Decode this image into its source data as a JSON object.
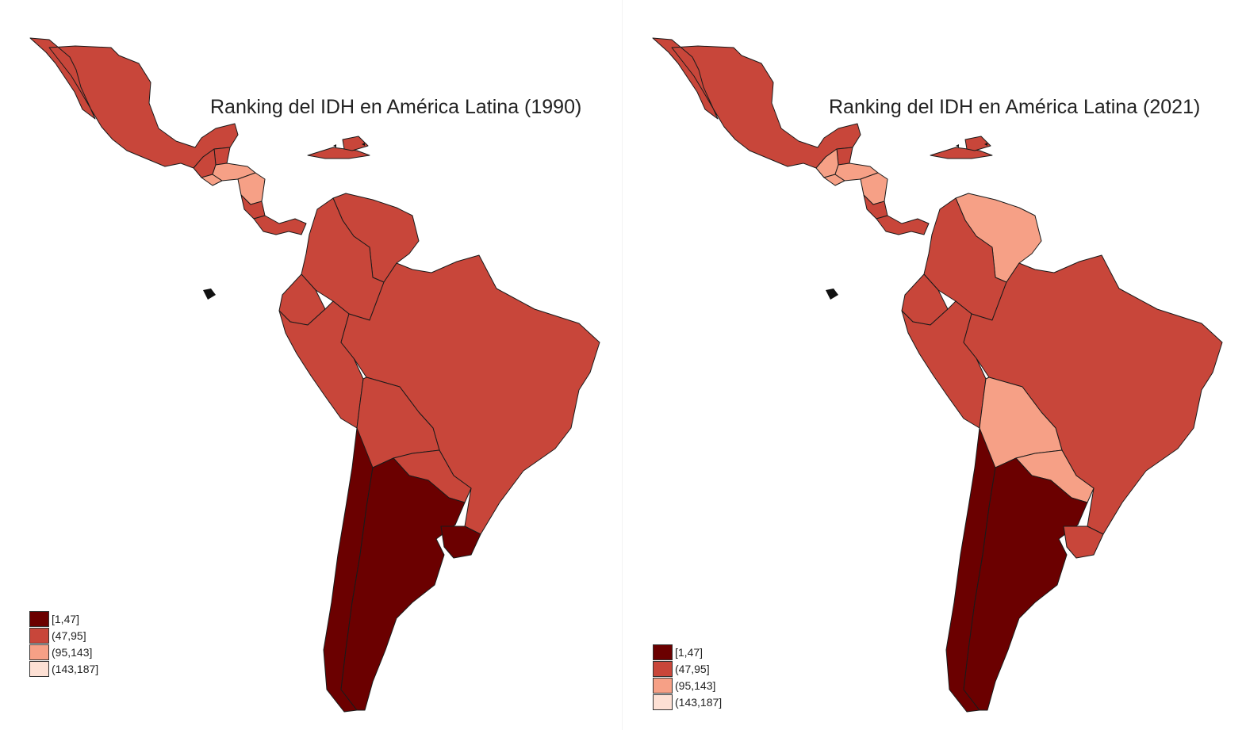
{
  "colors": {
    "tier1": "#6b0000",
    "tier2": "#c8463a",
    "tier3": "#f6a086",
    "tier4": "#fde0d4"
  },
  "maps": [
    {
      "title": "Ranking del IDH en América Latina (1990)",
      "legend": [
        "[1,47]",
        "(47,95]",
        "(95,143]",
        "(143,187]"
      ],
      "regions": {
        "mexico": "tier2",
        "guatemala": "tier2",
        "belize": "tier2",
        "el_salvador": "tier3",
        "honduras": "tier3",
        "nicaragua": "tier3",
        "costa_rica": "tier2",
        "panama": "tier2",
        "cuba": "tier2",
        "dominican_rep": "tier2",
        "colombia": "tier2",
        "venezuela": "tier2",
        "ecuador": "tier2",
        "peru": "tier2",
        "brazil": "tier2",
        "bolivia": "tier2",
        "paraguay": "tier2",
        "chile": "tier1",
        "argentina": "tier1",
        "uruguay": "tier1"
      }
    },
    {
      "title": "Ranking del IDH en América Latina (2021)",
      "legend": [
        "[1,47]",
        "(47,95]",
        "(95,143]",
        "(143,187]"
      ],
      "regions": {
        "mexico": "tier2",
        "guatemala": "tier3",
        "belize": "tier2",
        "el_salvador": "tier3",
        "honduras": "tier3",
        "nicaragua": "tier3",
        "costa_rica": "tier2",
        "panama": "tier2",
        "cuba": "tier2",
        "dominican_rep": "tier2",
        "colombia": "tier2",
        "venezuela": "tier3",
        "ecuador": "tier2",
        "peru": "tier2",
        "brazil": "tier2",
        "bolivia": "tier3",
        "paraguay": "tier3",
        "chile": "tier1",
        "argentina": "tier1",
        "uruguay": "tier2"
      }
    }
  ]
}
